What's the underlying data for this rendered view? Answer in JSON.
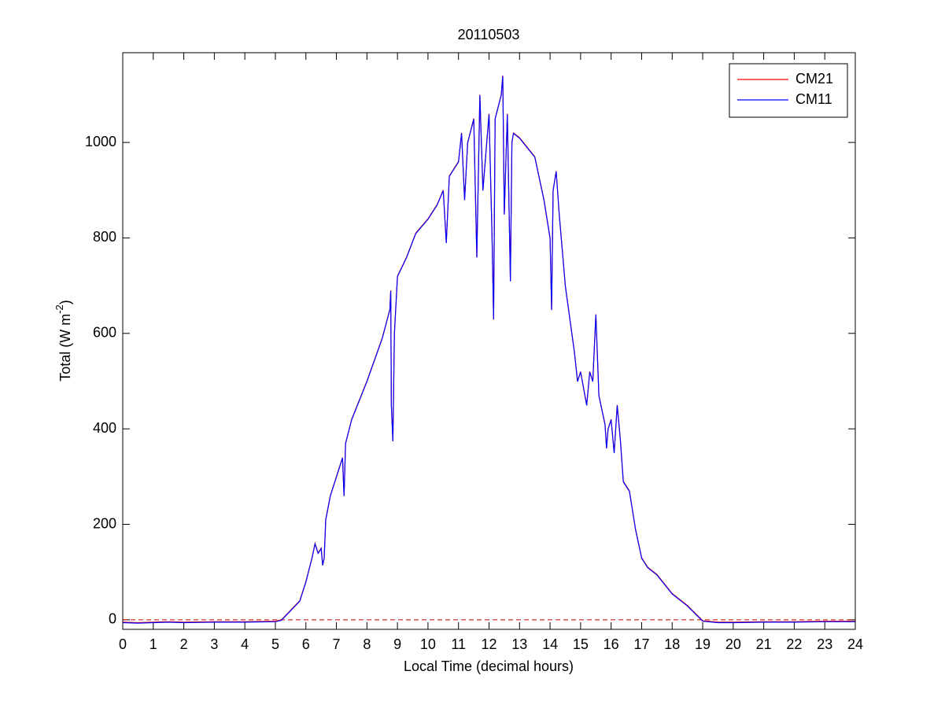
{
  "chart_data": {
    "type": "line",
    "title": "20110503",
    "xlabel": "Local Time (decimal hours)",
    "ylabel": {
      "text": "Total (W m",
      "sup": "-2",
      "end": ")"
    },
    "x": [
      0,
      0.5,
      1,
      1.5,
      2,
      3,
      4,
      5,
      5.2,
      5.5,
      5.8,
      6,
      6.2,
      6.3,
      6.4,
      6.5,
      6.55,
      6.6,
      6.65,
      6.8,
      7,
      7.2,
      7.25,
      7.3,
      7.5,
      8,
      8.5,
      8.75,
      8.78,
      8.8,
      8.85,
      8.9,
      9,
      9.3,
      9.6,
      10,
      10.3,
      10.5,
      10.6,
      10.7,
      11,
      11.1,
      11.2,
      11.3,
      11.5,
      11.6,
      11.7,
      11.8,
      12,
      12.1,
      12.15,
      12.2,
      12.4,
      12.45,
      12.5,
      12.6,
      12.7,
      12.75,
      12.8,
      13,
      13.5,
      13.8,
      14,
      14.05,
      14.1,
      14.2,
      14.3,
      14.5,
      14.8,
      14.9,
      15,
      15.2,
      15.3,
      15.4,
      15.5,
      15.6,
      15.8,
      15.85,
      15.9,
      16,
      16.1,
      16.2,
      16.3,
      16.4,
      16.6,
      16.8,
      17,
      17.2,
      17.5,
      18,
      18.5,
      19,
      19.5,
      20,
      21,
      22,
      23,
      24
    ],
    "series": [
      {
        "name": "CM21",
        "color": "#ff0000",
        "values": [
          -5,
          -6,
          -5,
          -4,
          -5,
          -4,
          -4,
          -3,
          0,
          20,
          40,
          80,
          130,
          160,
          140,
          150,
          115,
          130,
          210,
          260,
          300,
          340,
          260,
          370,
          420,
          500,
          590,
          650,
          690,
          450,
          375,
          600,
          720,
          760,
          810,
          840,
          870,
          900,
          790,
          930,
          960,
          1020,
          880,
          1000,
          1050,
          760,
          1100,
          900,
          1060,
          800,
          630,
          1050,
          1100,
          1140,
          850,
          1060,
          710,
          1000,
          1020,
          1010,
          970,
          880,
          800,
          650,
          900,
          940,
          850,
          700,
          560,
          500,
          520,
          450,
          520,
          500,
          640,
          470,
          410,
          360,
          400,
          420,
          350,
          450,
          380,
          290,
          270,
          190,
          130,
          110,
          95,
          55,
          30,
          -2,
          -5,
          -5,
          -4,
          -4,
          -3,
          -3
        ]
      },
      {
        "name": "CM11",
        "color": "#0000ff",
        "values": [
          -6,
          -7,
          -6,
          -5,
          -6,
          -5,
          -5,
          -4,
          -1,
          19,
          39,
          79,
          129,
          159,
          139,
          149,
          114,
          129,
          209,
          259,
          299,
          339,
          259,
          369,
          419,
          499,
          589,
          649,
          689,
          449,
          374,
          599,
          719,
          759,
          809,
          839,
          869,
          899,
          789,
          929,
          959,
          1019,
          879,
          999,
          1049,
          759,
          1099,
          899,
          1059,
          799,
          629,
          1049,
          1099,
          1139,
          849,
          1059,
          709,
          999,
          1019,
          1009,
          969,
          879,
          799,
          649,
          899,
          939,
          849,
          699,
          559,
          499,
          519,
          449,
          519,
          499,
          639,
          469,
          409,
          359,
          399,
          419,
          349,
          449,
          379,
          289,
          269,
          189,
          129,
          109,
          94,
          54,
          29,
          -3,
          -6,
          -6,
          -5,
          -5,
          -4,
          -4
        ]
      }
    ],
    "reference_line": {
      "value": 0,
      "color": "#c00000",
      "style": "dashed"
    },
    "xlim": [
      0,
      24
    ],
    "xticks": [
      0,
      1,
      2,
      3,
      4,
      5,
      6,
      7,
      8,
      9,
      10,
      11,
      12,
      13,
      14,
      15,
      16,
      17,
      18,
      19,
      20,
      21,
      22,
      23,
      24
    ],
    "ylim": [
      -20,
      1188
    ],
    "yticks": [
      0,
      200,
      400,
      600,
      800,
      1000
    ],
    "legend": "upper right",
    "grid": false
  }
}
